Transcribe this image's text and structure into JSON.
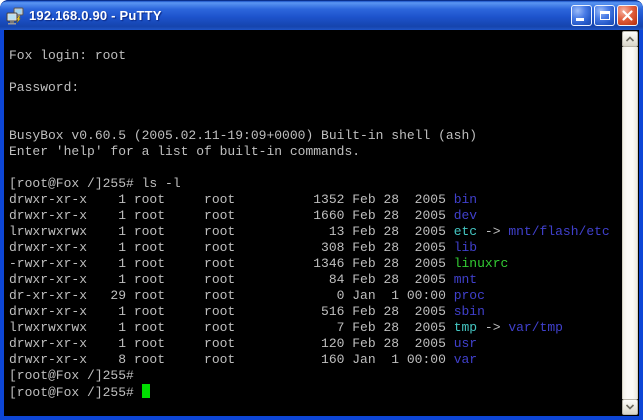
{
  "window": {
    "title": "192.168.0.90 - PuTTY",
    "icons": {
      "app": "putty-terminal-icon",
      "minimize": "minimize-icon",
      "maximize": "maximize-icon",
      "close": "close-icon",
      "scroll_up": "scroll-up-arrow-icon",
      "scroll_down": "scroll-down-arrow-icon"
    }
  },
  "colors": {
    "terminal_background": "#000000",
    "foreground": "#bfbfbf",
    "directory": "#4040cc",
    "symlink": "#44c6c2",
    "executable": "#33cc33",
    "cursor": "#00dd00",
    "titlebar_blue": "#2c66dc",
    "close_button_red": "#c23a18"
  },
  "terminal": {
    "lines": [
      [],
      [
        {
          "t": "Fox login: root",
          "c": "fg"
        }
      ],
      [],
      [
        {
          "t": "Password:",
          "c": "fg"
        }
      ],
      [],
      [],
      [
        {
          "t": "BusyBox v0.60.5 (2005.02.11-19:09+0000) Built-in shell (ash)",
          "c": "fg"
        }
      ],
      [
        {
          "t": "Enter 'help' for a list of built-in commands.",
          "c": "fg"
        }
      ],
      [],
      [
        {
          "t": "[root@Fox /]255# ls -l",
          "c": "fg"
        }
      ],
      [
        {
          "t": "drwxr-xr-x    1 root     root          1352 Feb 28  2005 ",
          "c": "fg"
        },
        {
          "t": "bin",
          "c": "dir"
        }
      ],
      [
        {
          "t": "drwxr-xr-x    1 root     root          1660 Feb 28  2005 ",
          "c": "fg"
        },
        {
          "t": "dev",
          "c": "dir"
        }
      ],
      [
        {
          "t": "lrwxrwxrwx    1 root     root            13 Feb 28  2005 ",
          "c": "fg"
        },
        {
          "t": "etc",
          "c": "ln"
        },
        {
          "t": " -> ",
          "c": "fg"
        },
        {
          "t": "mnt/flash/etc",
          "c": "dir"
        }
      ],
      [
        {
          "t": "drwxr-xr-x    1 root     root           308 Feb 28  2005 ",
          "c": "fg"
        },
        {
          "t": "lib",
          "c": "dir"
        }
      ],
      [
        {
          "t": "-rwxr-xr-x    1 root     root          1346 Feb 28  2005 ",
          "c": "fg"
        },
        {
          "t": "linuxrc",
          "c": "ex"
        }
      ],
      [
        {
          "t": "drwxr-xr-x    1 root     root            84 Feb 28  2005 ",
          "c": "fg"
        },
        {
          "t": "mnt",
          "c": "dir"
        }
      ],
      [
        {
          "t": "dr-xr-xr-x   29 root     root             0 Jan  1 00:00 ",
          "c": "fg"
        },
        {
          "t": "proc",
          "c": "dir"
        }
      ],
      [
        {
          "t": "drwxr-xr-x    1 root     root           516 Feb 28  2005 ",
          "c": "fg"
        },
        {
          "t": "sbin",
          "c": "dir"
        }
      ],
      [
        {
          "t": "lrwxrwxrwx    1 root     root             7 Feb 28  2005 ",
          "c": "fg"
        },
        {
          "t": "tmp",
          "c": "ln"
        },
        {
          "t": " -> ",
          "c": "fg"
        },
        {
          "t": "var/tmp",
          "c": "dir"
        }
      ],
      [
        {
          "t": "drwxr-xr-x    1 root     root           120 Feb 28  2005 ",
          "c": "fg"
        },
        {
          "t": "usr",
          "c": "dir"
        }
      ],
      [
        {
          "t": "drwxr-xr-x    8 root     root           160 Jan  1 00:00 ",
          "c": "fg"
        },
        {
          "t": "var",
          "c": "dir"
        }
      ],
      [
        {
          "t": "[root@Fox /]255#",
          "c": "fg"
        }
      ],
      [
        {
          "t": "[root@Fox /]255# ",
          "c": "fg"
        },
        {
          "t": "",
          "c": "cursor"
        }
      ]
    ]
  }
}
